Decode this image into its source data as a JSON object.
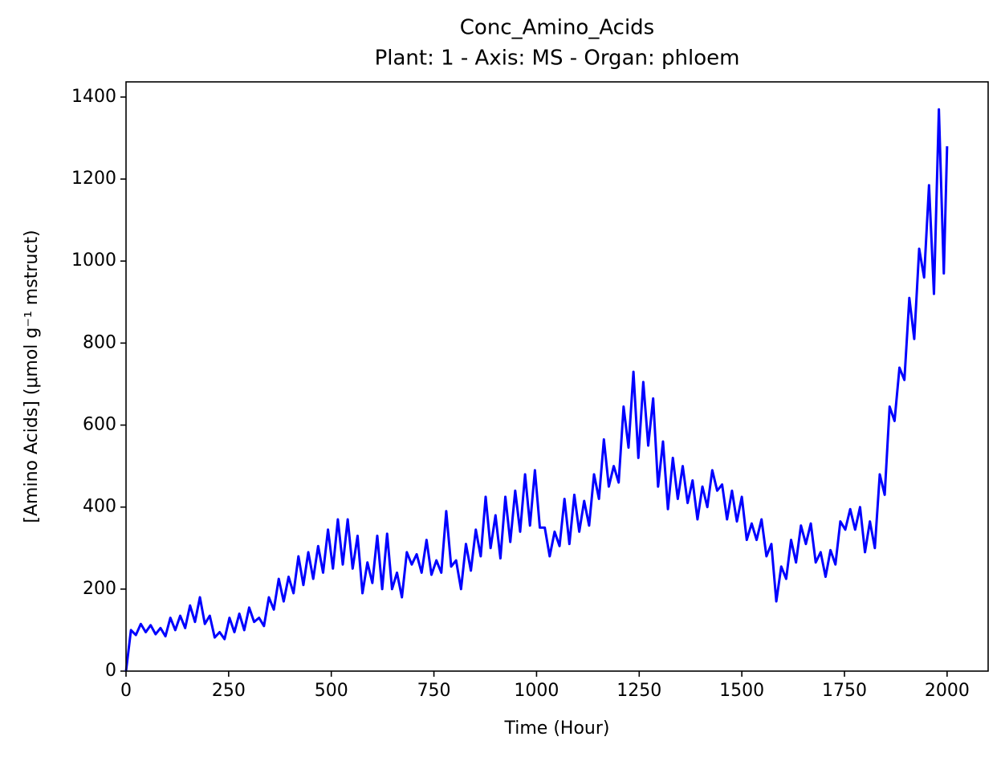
{
  "chart_data": {
    "type": "line",
    "title": "Conc_Amino_Acids",
    "subtitle": "Plant: 1 - Axis: MS - Organ: phloem",
    "x_label": "Time (Hour)",
    "y_label": "[Amino Acids] (μmol g⁻¹ mstruct)",
    "xlim": [
      0,
      2100
    ],
    "ylim": [
      0,
      1437
    ],
    "xticks": [
      0,
      250,
      500,
      750,
      1000,
      1250,
      1500,
      1750,
      2000
    ],
    "yticks": [
      0,
      200,
      400,
      600,
      800,
      1000,
      1200,
      1400
    ],
    "x": [
      0,
      12,
      24,
      36,
      48,
      60,
      72,
      84,
      96,
      108,
      120,
      132,
      144,
      156,
      168,
      180,
      192,
      204,
      216,
      228,
      240,
      252,
      264,
      276,
      288,
      300,
      312,
      324,
      336,
      348,
      360,
      372,
      384,
      396,
      408,
      420,
      432,
      444,
      456,
      468,
      480,
      492,
      504,
      516,
      528,
      540,
      552,
      564,
      576,
      588,
      600,
      612,
      624,
      636,
      648,
      660,
      672,
      684,
      696,
      708,
      720,
      732,
      744,
      756,
      768,
      780,
      792,
      804,
      816,
      828,
      840,
      852,
      864,
      876,
      888,
      900,
      912,
      924,
      936,
      948,
      960,
      972,
      984,
      996,
      1008,
      1020,
      1032,
      1044,
      1056,
      1068,
      1080,
      1092,
      1104,
      1116,
      1128,
      1140,
      1152,
      1164,
      1176,
      1188,
      1200,
      1212,
      1224,
      1236,
      1248,
      1260,
      1272,
      1284,
      1296,
      1308,
      1320,
      1332,
      1344,
      1356,
      1368,
      1380,
      1392,
      1404,
      1416,
      1428,
      1440,
      1452,
      1464,
      1476,
      1488,
      1500,
      1512,
      1524,
      1536,
      1548,
      1560,
      1572,
      1584,
      1596,
      1608,
      1620,
      1632,
      1644,
      1656,
      1668,
      1680,
      1692,
      1704,
      1716,
      1728,
      1740,
      1752,
      1764,
      1776,
      1788,
      1800,
      1812,
      1824,
      1836,
      1848,
      1860,
      1872,
      1884,
      1896,
      1908,
      1920,
      1932,
      1944,
      1956,
      1968,
      1980,
      1992,
      2000
    ],
    "series": [
      {
        "color": "#0000ff",
        "values": [
          0,
          100,
          88,
          115,
          95,
          112,
          90,
          105,
          85,
          130,
          100,
          135,
          105,
          160,
          120,
          180,
          115,
          135,
          82,
          95,
          78,
          130,
          95,
          140,
          100,
          155,
          120,
          130,
          110,
          180,
          150,
          225,
          170,
          230,
          190,
          280,
          210,
          290,
          225,
          305,
          240,
          345,
          250,
          370,
          260,
          370,
          250,
          330,
          190,
          265,
          215,
          330,
          200,
          335,
          200,
          240,
          180,
          290,
          260,
          285,
          240,
          320,
          235,
          270,
          240,
          390,
          255,
          270,
          200,
          310,
          245,
          345,
          280,
          425,
          300,
          380,
          275,
          425,
          315,
          440,
          340,
          480,
          355,
          490,
          350,
          350,
          280,
          340,
          305,
          420,
          310,
          430,
          340,
          415,
          355,
          480,
          420,
          565,
          450,
          500,
          460,
          645,
          545,
          730,
          520,
          705,
          550,
          665,
          450,
          560,
          395,
          520,
          420,
          500,
          410,
          465,
          370,
          450,
          400,
          490,
          440,
          455,
          370,
          440,
          365,
          425,
          320,
          360,
          320,
          370,
          280,
          310,
          170,
          255,
          225,
          320,
          265,
          355,
          310,
          360,
          265,
          290,
          230,
          295,
          260,
          365,
          345,
          395,
          345,
          400,
          290,
          365,
          300,
          480,
          430,
          645,
          610,
          740,
          710,
          910,
          810,
          1030,
          960,
          1185,
          920,
          1370,
          970,
          1280
        ]
      }
    ]
  }
}
